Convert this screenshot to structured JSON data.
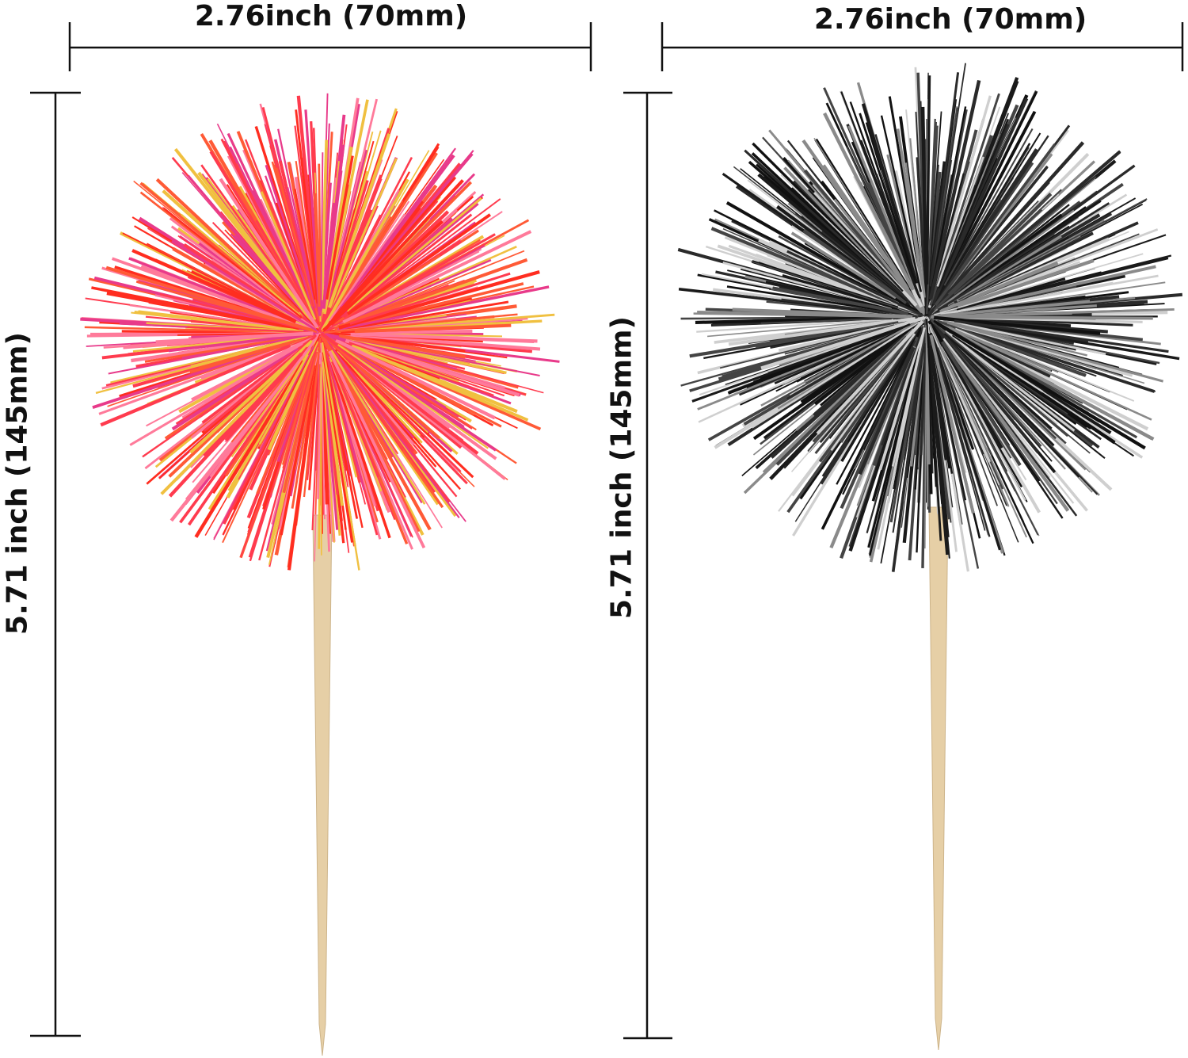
{
  "products": [
    {
      "name_color": "iridescent-red",
      "width_label": "2.76inch  (70mm)",
      "height_label": "5.71 inch  (145mm)",
      "colors": [
        "#ff3b4e",
        "#ff5a36",
        "#ff7a9a",
        "#f0c040",
        "#e83a8a",
        "#ff2d20"
      ]
    },
    {
      "name_color": "black",
      "width_label": "2.76inch  (70mm)",
      "height_label": "5.71 inch  (145mm)",
      "colors": [
        "#111111",
        "#2a2a2a",
        "#444444",
        "#1a1a1a",
        "#8a8a8a",
        "#cfcfcf"
      ]
    }
  ],
  "stick_color": "#e6cfa6"
}
